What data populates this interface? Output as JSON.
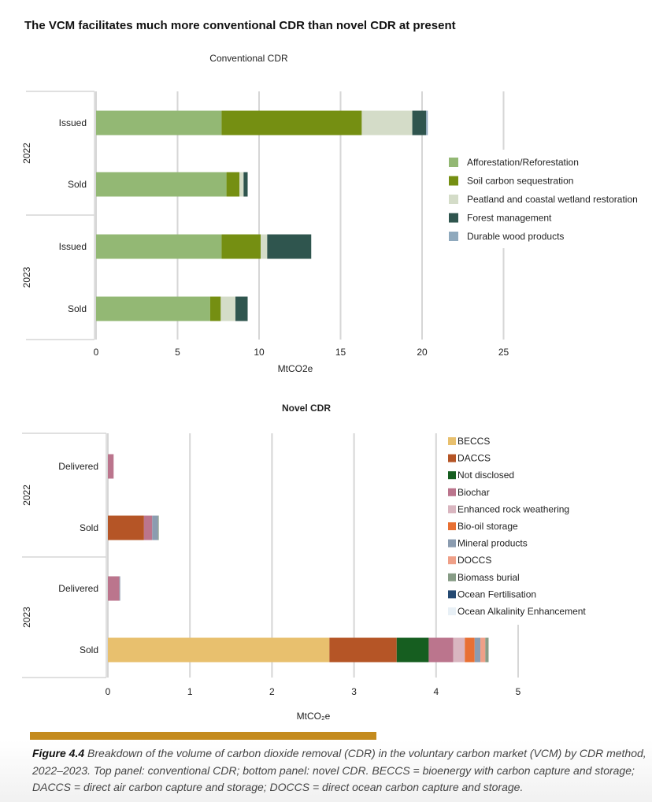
{
  "title": "The VCM facilitates much more conventional CDR than novel CDR at present",
  "chart_data": [
    {
      "type": "bar",
      "orientation": "horizontal",
      "stacked": true,
      "title": "Conventional CDR",
      "xlabel": "MtCO2e",
      "xlim": [
        0,
        25
      ],
      "xticks": [
        0,
        5,
        10,
        15,
        20,
        25
      ],
      "grid": true,
      "legend_position": "right",
      "groups": [
        "2022",
        "2023"
      ],
      "categories": [
        {
          "group": "2022",
          "label": "Issued"
        },
        {
          "group": "2022",
          "label": "Sold"
        },
        {
          "group": "2023",
          "label": "Issued"
        },
        {
          "group": "2023",
          "label": "Sold"
        }
      ],
      "series": [
        {
          "name": "Afforestation/Reforestation",
          "color": "#93b874",
          "values": [
            7.7,
            8.0,
            7.7,
            7.0
          ]
        },
        {
          "name": "Soil carbon sequestration",
          "color": "#758f12",
          "values": [
            8.6,
            0.8,
            2.4,
            0.65
          ]
        },
        {
          "name": "Peatland and coastal wetland restoration",
          "color": "#d4dcc8",
          "values": [
            3.1,
            0.25,
            0.4,
            0.9
          ]
        },
        {
          "name": "Forest management",
          "color": "#2f554e",
          "values": [
            0.85,
            0.25,
            2.7,
            0.75
          ]
        },
        {
          "name": "Durable wood products",
          "color": "#8fa9bd",
          "values": [
            0.1,
            0,
            0,
            0
          ]
        }
      ]
    },
    {
      "type": "bar",
      "orientation": "horizontal",
      "stacked": true,
      "title": "Novel CDR",
      "xlabel": "MtCO₂e",
      "xlim": [
        0,
        5
      ],
      "xticks": [
        0,
        1,
        2,
        3,
        4,
        5
      ],
      "grid": true,
      "legend_position": "right",
      "groups": [
        "2022",
        "2023"
      ],
      "categories": [
        {
          "group": "2022",
          "label": "Delivered"
        },
        {
          "group": "2022",
          "label": "Sold"
        },
        {
          "group": "2023",
          "label": "Delivered"
        },
        {
          "group": "2023",
          "label": "Sold"
        }
      ],
      "series": [
        {
          "name": "BECCS",
          "color": "#e8c06e",
          "values": [
            0,
            0,
            0,
            2.7
          ]
        },
        {
          "name": "DACCS",
          "color": "#b55526",
          "values": [
            0,
            0.44,
            0,
            0.82
          ]
        },
        {
          "name": "Not disclosed",
          "color": "#165e20",
          "values": [
            0,
            0,
            0,
            0.39
          ]
        },
        {
          "name": "Biochar",
          "color": "#bb758d",
          "values": [
            0.07,
            0.1,
            0.14,
            0.3
          ]
        },
        {
          "name": "Enhanced rock weathering",
          "color": "#d9b6c0",
          "values": [
            0,
            0,
            0,
            0.14
          ]
        },
        {
          "name": "Bio-oil storage",
          "color": "#e87033",
          "values": [
            0,
            0,
            0,
            0.12
          ]
        },
        {
          "name": "Mineral products",
          "color": "#8b9cb0",
          "values": [
            0,
            0.07,
            0.01,
            0.07
          ]
        },
        {
          "name": "DOCCS",
          "color": "#efa088",
          "values": [
            0,
            0,
            0,
            0.06
          ]
        },
        {
          "name": "Biomass burial",
          "color": "#879c86",
          "values": [
            0,
            0.01,
            0,
            0.04
          ]
        },
        {
          "name": "Ocean Fertilisation",
          "color": "#254a72",
          "values": [
            0,
            0,
            0,
            0
          ]
        },
        {
          "name": "Ocean Alkalinity Enhancement",
          "color": "#e8f0f6",
          "values": [
            0,
            0,
            0,
            0
          ]
        }
      ]
    }
  ],
  "caption": {
    "label": "Figure 4.4",
    "text": " Breakdown of the volume of carbon dioxide removal (CDR) in the voluntary carbon market (VCM) by CDR method, 2022–2023. Top panel: conventional CDR; bottom panel: novel CDR. BECCS = bioenergy with carbon capture and storage; DACCS = direct air carbon capture and storage; DOCCS = direct ocean carbon capture and storage."
  }
}
